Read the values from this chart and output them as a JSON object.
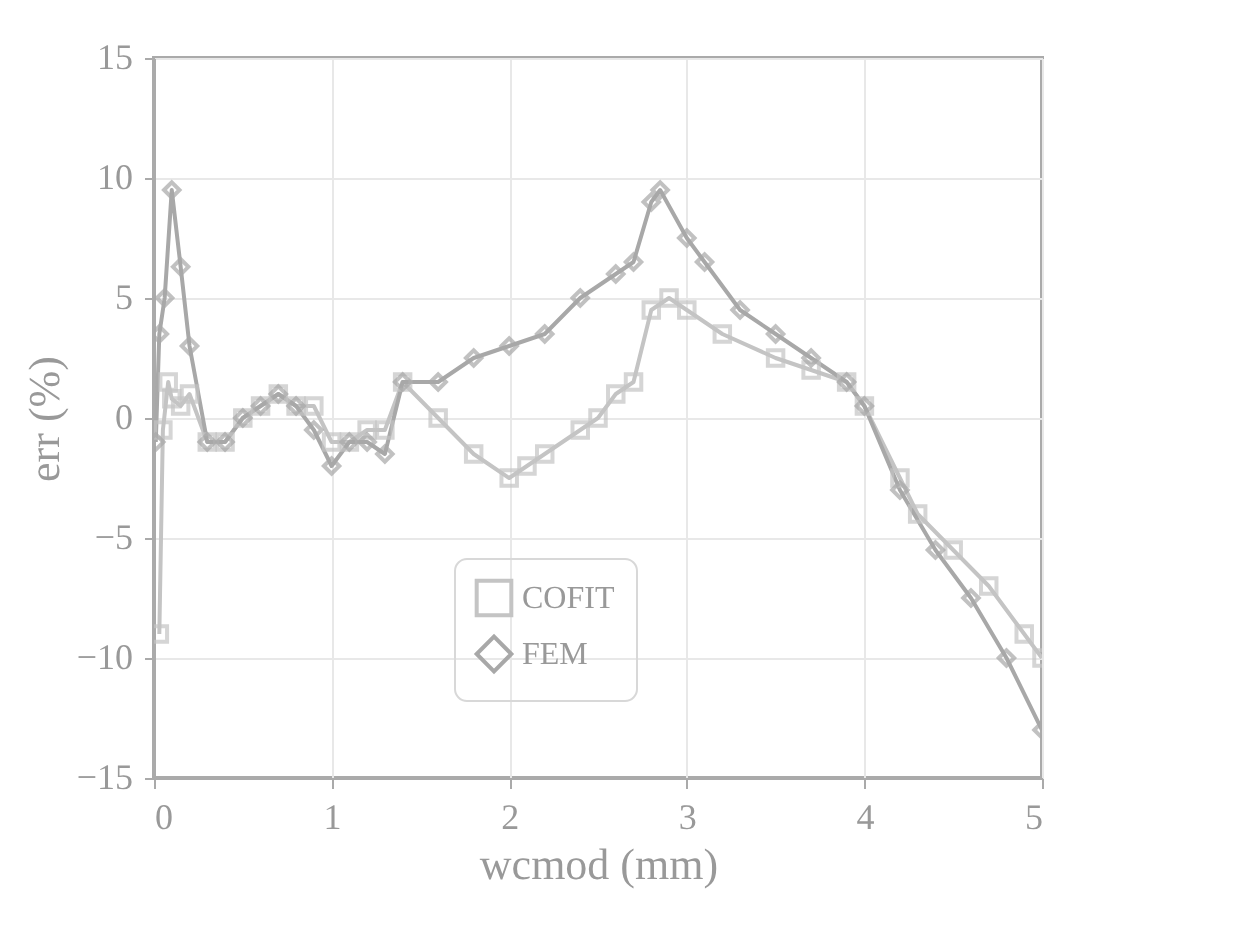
{
  "chart_data": {
    "type": "line",
    "xlabel": "wcmod (mm)",
    "ylabel": "err (%)",
    "xlim": [
      0,
      5
    ],
    "ylim": [
      -15,
      15
    ],
    "xticks": [
      0,
      1,
      2,
      3,
      4,
      5
    ],
    "yticks": [
      -15,
      -10,
      -5,
      0,
      5,
      10,
      15
    ],
    "grid": true,
    "legend": "bottom",
    "series": [
      {
        "name": "COFIT",
        "color": "#c4c4c4",
        "marker": "square",
        "x": [
          0.03,
          0.05,
          0.08,
          0.1,
          0.15,
          0.2,
          0.3,
          0.4,
          0.5,
          0.6,
          0.7,
          0.8,
          0.9,
          1.0,
          1.1,
          1.2,
          1.3,
          1.4,
          1.6,
          1.8,
          2.0,
          2.1,
          2.2,
          2.4,
          2.5,
          2.6,
          2.7,
          2.8,
          2.9,
          3.0,
          3.2,
          3.5,
          3.7,
          3.9,
          4.0,
          4.2,
          4.3,
          4.5,
          4.7,
          4.9,
          5.0
        ],
        "values": [
          -9,
          -0.5,
          1.5,
          0.8,
          0.5,
          1,
          -1,
          -1,
          0,
          0.5,
          1,
          0.5,
          0.5,
          -1,
          -1,
          -0.5,
          -0.5,
          1.5,
          0,
          -1.5,
          -2.5,
          -2,
          -1.5,
          -0.5,
          0,
          1,
          1.5,
          4.5,
          5,
          4.5,
          3.5,
          2.5,
          2,
          1.5,
          0.5,
          -2.5,
          -4,
          -5.5,
          -7,
          -9,
          -10
        ]
      },
      {
        "name": "FEM",
        "color": "#a8a8a8",
        "marker": "diamond",
        "x": [
          0.01,
          0.03,
          0.06,
          0.1,
          0.15,
          0.2,
          0.3,
          0.4,
          0.5,
          0.6,
          0.7,
          0.8,
          0.9,
          1.0,
          1.1,
          1.2,
          1.3,
          1.4,
          1.6,
          1.8,
          2.0,
          2.2,
          2.4,
          2.6,
          2.7,
          2.8,
          2.85,
          3.0,
          3.1,
          3.3,
          3.5,
          3.7,
          3.9,
          4.0,
          4.2,
          4.4,
          4.6,
          4.8,
          5.0
        ],
        "values": [
          -1,
          3.5,
          5,
          9.5,
          6.3,
          3,
          -1,
          -1,
          0,
          0.5,
          1,
          0.5,
          -0.5,
          -2,
          -1,
          -1,
          -1.5,
          1.5,
          1.5,
          2.5,
          3,
          3.5,
          5,
          6,
          6.5,
          9,
          9.5,
          7.5,
          6.5,
          4.5,
          3.5,
          2.5,
          1.5,
          0.5,
          -3,
          -5.5,
          -7.5,
          -10,
          -13
        ]
      }
    ]
  }
}
